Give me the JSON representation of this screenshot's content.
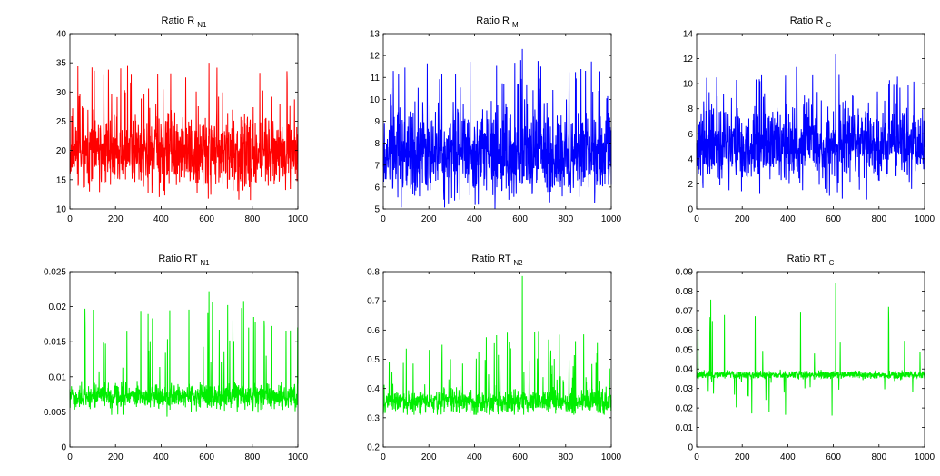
{
  "chart_data": [
    {
      "type": "line",
      "title": "Ratio R",
      "title_sub": "N1",
      "series": [
        {
          "color": "#ff0000",
          "min": 11.5,
          "max": 35.0,
          "base": 19.5,
          "spread": 3.0,
          "spike_prob": 0.1,
          "spike_max": 34.5,
          "seed": 11
        }
      ],
      "xlim": [
        0,
        1000
      ],
      "ylim": [
        10,
        40
      ],
      "xticks": [
        0,
        200,
        400,
        600,
        800,
        1000
      ],
      "yticks": [
        10,
        15,
        20,
        25,
        30,
        35,
        40
      ],
      "grid": false
    },
    {
      "type": "line",
      "title": "Ratio R",
      "title_sub": "M",
      "series": [
        {
          "color": "#0000ff",
          "min": 5.0,
          "max": 12.3,
          "base": 7.5,
          "spread": 0.9,
          "spike_prob": 0.08,
          "spike_max": 11.8,
          "seed": 23
        }
      ],
      "xlim": [
        0,
        1000
      ],
      "ylim": [
        5,
        13
      ],
      "xticks": [
        0,
        200,
        400,
        600,
        800,
        1000
      ],
      "yticks": [
        5,
        6,
        7,
        8,
        9,
        10,
        11,
        12,
        13
      ],
      "grid": false
    },
    {
      "type": "line",
      "title": "Ratio R",
      "title_sub": "C",
      "series": [
        {
          "color": "#0000ff",
          "min": 0.7,
          "max": 12.4,
          "base": 5.0,
          "spread": 1.4,
          "spike_prob": 0.08,
          "spike_max": 11.5,
          "seed": 37
        }
      ],
      "xlim": [
        0,
        1000
      ],
      "ylim": [
        0,
        14
      ],
      "xticks": [
        0,
        200,
        400,
        600,
        800,
        1000
      ],
      "yticks": [
        0,
        2,
        4,
        6,
        8,
        10,
        12,
        14
      ],
      "grid": false
    },
    {
      "type": "line",
      "title": "Ratio RT",
      "title_sub": "N1",
      "series": [
        {
          "color": "#00ee00",
          "min": 0.004,
          "max": 0.0222,
          "base": 0.0072,
          "spread": 0.0008,
          "spike_prob": 0.06,
          "spike_max": 0.021,
          "seed": 41
        }
      ],
      "xlim": [
        0,
        1000
      ],
      "ylim": [
        0,
        0.025
      ],
      "xticks": [
        0,
        200,
        400,
        600,
        800,
        1000
      ],
      "yticks": [
        0,
        0.005,
        0.01,
        0.015,
        0.02,
        0.025
      ],
      "grid": false
    },
    {
      "type": "line",
      "title": "Ratio RT",
      "title_sub": "N2",
      "series": [
        {
          "color": "#00ee00",
          "min": 0.31,
          "max": 0.785,
          "base": 0.355,
          "spread": 0.02,
          "spike_prob": 0.08,
          "spike_max": 0.6,
          "seed": 53
        }
      ],
      "xlim": [
        0,
        1000
      ],
      "ylim": [
        0.2,
        0.8
      ],
      "xticks": [
        0,
        200,
        400,
        600,
        800,
        1000
      ],
      "yticks": [
        0.2,
        0.3,
        0.4,
        0.5,
        0.6,
        0.7,
        0.8
      ],
      "grid": false
    },
    {
      "type": "line",
      "title": "Ratio RT",
      "title_sub": "C",
      "series": [
        {
          "color": "#00ee00",
          "min": 0.015,
          "max": 0.084,
          "base": 0.037,
          "spread": 0.001,
          "spike_prob": 0.02,
          "spike_max": 0.08,
          "seed": 67
        }
      ],
      "xlim": [
        0,
        1000
      ],
      "ylim": [
        0,
        0.09
      ],
      "xticks": [
        0,
        200,
        400,
        600,
        800,
        1000
      ],
      "yticks": [
        0,
        0.01,
        0.02,
        0.03,
        0.04,
        0.05,
        0.06,
        0.07,
        0.08,
        0.09
      ],
      "grid": false
    }
  ]
}
